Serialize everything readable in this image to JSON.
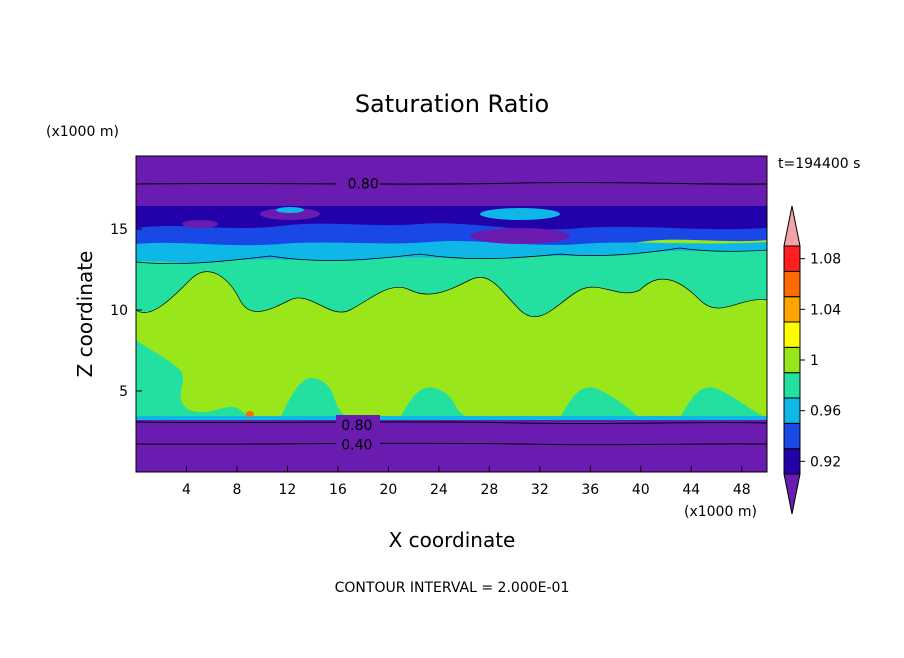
{
  "chart_data": {
    "type": "heatmap",
    "title": "Saturation Ratio",
    "xlabel": "X coordinate",
    "ylabel": "Z coordinate",
    "x_unit": "(x1000 m)",
    "y_unit": "(x1000 m)",
    "time_label": "t=194400 s",
    "footer": "CONTOUR INTERVAL = 2.000E-01",
    "xlim": [
      0,
      50
    ],
    "ylim": [
      0,
      19.5
    ],
    "x_ticks": [
      4,
      8,
      12,
      16,
      20,
      24,
      28,
      32,
      36,
      40,
      44,
      48
    ],
    "y_ticks": [
      5,
      10,
      15
    ],
    "contour_labels": [
      {
        "text": "0.80",
        "x": 18,
        "y": 17.8
      },
      {
        "text": "0.80",
        "x": 17.5,
        "y": 2.9
      },
      {
        "text": "0.40",
        "x": 17.5,
        "y": 1.7
      }
    ],
    "colorbar": {
      "levels": [
        0.92,
        0.94,
        0.96,
        0.98,
        1.0,
        1.02,
        1.04,
        1.06,
        1.08,
        1.1
      ],
      "labels": [
        "0.92",
        "0.96",
        "1",
        "1.04",
        "1.08"
      ],
      "colors": [
        "#6a1bb0",
        "#2200aa",
        "#1a48e6",
        "#0fb6e8",
        "#24e0a0",
        "#99e61a",
        "#ffff00",
        "#ffa500",
        "#ff6a00",
        "#ff2020",
        "#f2a3a8"
      ]
    },
    "bands": [
      {
        "z": [
          0,
          3.3
        ],
        "value": "<0.92"
      },
      {
        "z": [
          3.3,
          3.6
        ],
        "value": "0.94-0.96"
      },
      {
        "z": [
          3.6,
          14.5
        ],
        "value": "0.98-1.02"
      },
      {
        "z": [
          14.5,
          17.2
        ],
        "value": "0.92-0.98"
      },
      {
        "z": [
          17.2,
          19.5
        ],
        "value": "<0.92"
      }
    ]
  }
}
